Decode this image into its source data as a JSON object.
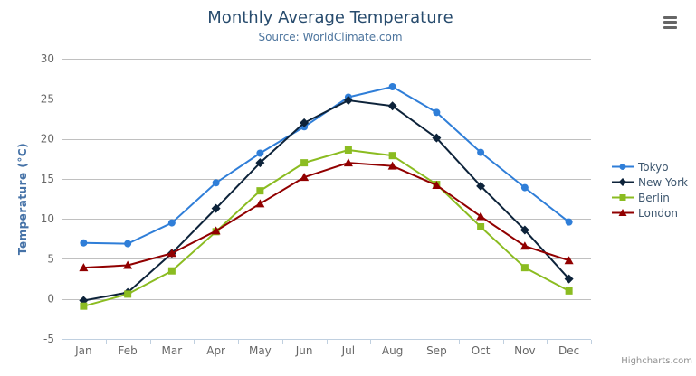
{
  "header": {
    "title": "Monthly Average Temperature",
    "subtitle": "Source: WorldClimate.com"
  },
  "credit_label": "Highcharts.com",
  "export_menu_icon": "hamburger-menu-icon",
  "colors": {
    "title": "#274b6d",
    "subtitle": "#4d759e",
    "axis_title": "#4572a7",
    "tick_label": "#666666",
    "grid_line": "#c0c0c0",
    "axis_line": "#c0d0e0",
    "legend_text": "#3e576f",
    "credit_text": "#909090"
  },
  "chart_data": {
    "type": "line",
    "title": "Monthly Average Temperature",
    "subtitle": "Source: WorldClimate.com",
    "xlabel": "",
    "ylabel": "Temperature (°C)",
    "ylim": [
      -5,
      30
    ],
    "yticks": [
      -5,
      0,
      5,
      10,
      15,
      20,
      25,
      30
    ],
    "grid": true,
    "legend_position": "right",
    "categories": [
      "Jan",
      "Feb",
      "Mar",
      "Apr",
      "May",
      "Jun",
      "Jul",
      "Aug",
      "Sep",
      "Oct",
      "Nov",
      "Dec"
    ],
    "series": [
      {
        "name": "Tokyo",
        "color": "#2f7ed8",
        "marker": "circle",
        "values": [
          7.0,
          6.9,
          9.5,
          14.5,
          18.2,
          21.5,
          25.2,
          26.5,
          23.3,
          18.3,
          13.9,
          9.6
        ]
      },
      {
        "name": "New York",
        "color": "#0d233a",
        "marker": "diamond",
        "values": [
          -0.2,
          0.8,
          5.7,
          11.3,
          17.0,
          22.0,
          24.8,
          24.1,
          20.1,
          14.1,
          8.6,
          2.5
        ]
      },
      {
        "name": "Berlin",
        "color": "#8bbc21",
        "marker": "square",
        "values": [
          -0.9,
          0.6,
          3.5,
          8.4,
          13.5,
          17.0,
          18.6,
          17.9,
          14.3,
          9.0,
          3.9,
          1.0
        ]
      },
      {
        "name": "London",
        "color": "#910000",
        "marker": "triangle",
        "values": [
          3.9,
          4.2,
          5.7,
          8.5,
          11.9,
          15.2,
          17.0,
          16.6,
          14.2,
          10.3,
          6.6,
          4.8
        ]
      }
    ]
  }
}
